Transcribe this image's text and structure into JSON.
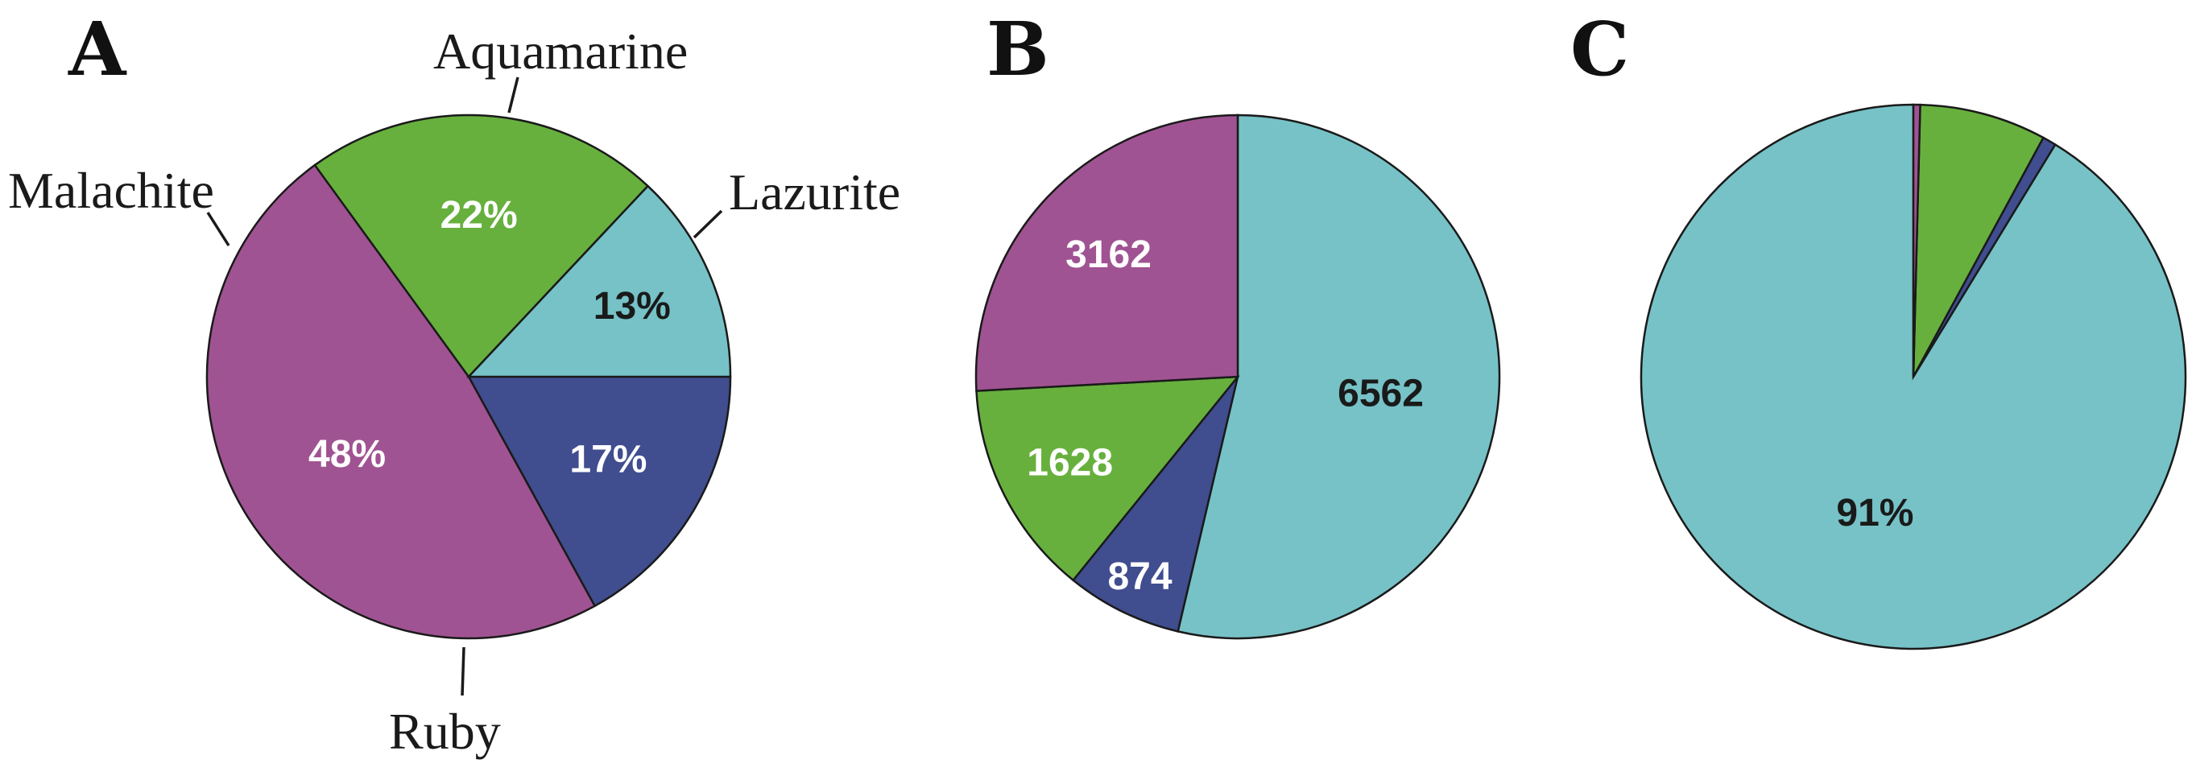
{
  "colors": {
    "Aquamarine": "#76c2c7",
    "Lazurite": "#404d8f",
    "Ruby": "#a05392",
    "Malachite": "#67b03e",
    "text_dark": "#1a1a1a",
    "text_light": "#ffffff"
  },
  "chart_data": [
    {
      "type": "pie",
      "panel": "A",
      "slices": [
        {
          "category": "Lazurite",
          "value": 17,
          "label": "17%",
          "label_color": "light"
        },
        {
          "category": "Ruby",
          "value": 48,
          "label": "48%",
          "label_color": "light"
        },
        {
          "category": "Malachite",
          "value": 22,
          "label": "22%",
          "label_color": "light"
        },
        {
          "category": "Aquamarine",
          "value": 13,
          "label": "13%",
          "label_color": "dark"
        }
      ],
      "category_labels": [
        "Aquamarine",
        "Lazurite",
        "Malachite",
        "Ruby"
      ]
    },
    {
      "type": "pie",
      "panel": "B",
      "slices": [
        {
          "category": "Aquamarine",
          "value": 6562,
          "label": "6562",
          "label_color": "dark"
        },
        {
          "category": "Lazurite",
          "value": 874,
          "label": "874",
          "label_color": "light"
        },
        {
          "category": "Malachite",
          "value": 1628,
          "label": "1628",
          "label_color": "light"
        },
        {
          "category": "Ruby",
          "value": 3162,
          "label": "3162",
          "label_color": "light"
        }
      ]
    },
    {
      "type": "pie",
      "panel": "C",
      "slices": [
        {
          "category": "Aquamarine",
          "value": 91.0,
          "label": "91%",
          "label_color": "dark"
        },
        {
          "category": "Lazurite",
          "value": 0.8,
          "label": "",
          "label_color": "dark"
        },
        {
          "category": "Malachite",
          "value": 7.5,
          "label": "",
          "label_color": "dark"
        },
        {
          "category": "Ruby",
          "value": 0.4,
          "label": "",
          "label_color": "dark"
        }
      ]
    }
  ]
}
